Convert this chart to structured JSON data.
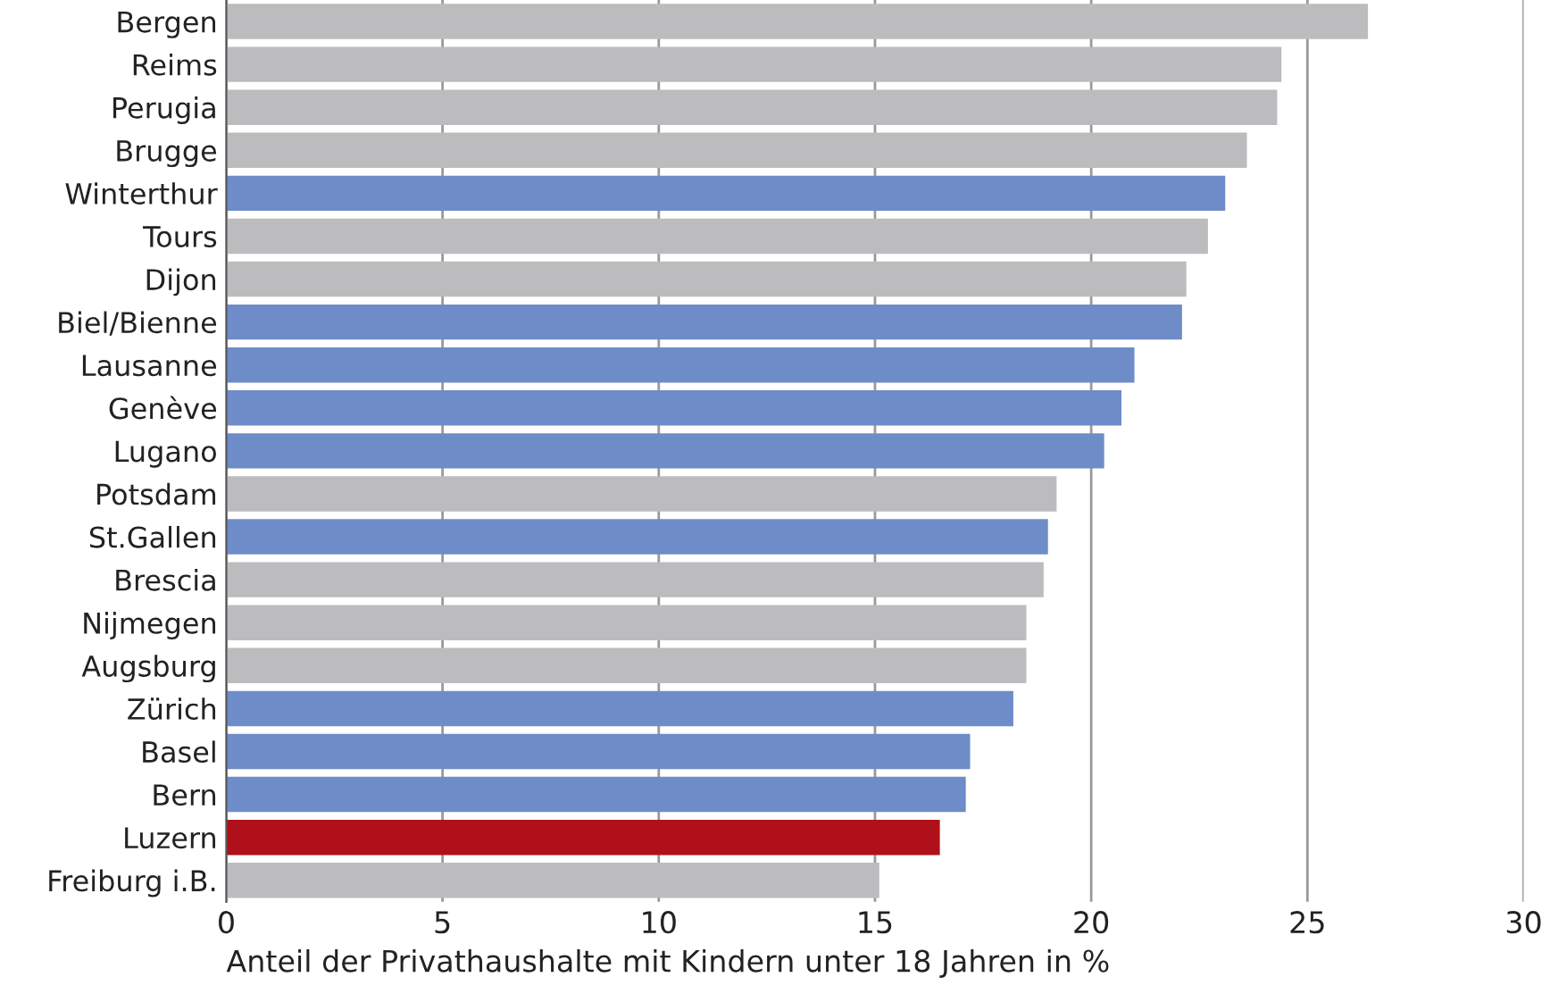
{
  "chart_data": {
    "type": "bar",
    "orientation": "horizontal",
    "xlabel": "Anteil der Privathaushalte mit Kindern unter 18 Jahren in %",
    "categories": [
      "Bergen",
      "Reims",
      "Perugia",
      "Brugge",
      "Winterthur",
      "Tours",
      "Dijon",
      "Biel/Bienne",
      "Lausanne",
      "Genève",
      "Lugano",
      "Potsdam",
      "St.Gallen",
      "Brescia",
      "Nijmegen",
      "Augsburg",
      "Zürich",
      "Basel",
      "Bern",
      "Luzern",
      "Freiburg i.B."
    ],
    "values": [
      26.4,
      24.4,
      24.3,
      23.6,
      23.1,
      22.7,
      22.2,
      22.1,
      21.0,
      20.7,
      20.3,
      19.2,
      19.0,
      18.9,
      18.5,
      18.5,
      18.2,
      17.2,
      17.1,
      16.5,
      15.1
    ],
    "colors": [
      "#bcbcbe",
      "#bcbcbe",
      "#bcbcbe",
      "#bcbcbe",
      "#6e8cc8",
      "#bcbcbe",
      "#bcbcbe",
      "#6e8cc8",
      "#6e8cc8",
      "#6e8cc8",
      "#6e8cc8",
      "#bcbcbe",
      "#6e8cc8",
      "#bcbcbe",
      "#bcbcbe",
      "#bcbcbe",
      "#6e8cc8",
      "#6e8cc8",
      "#6e8cc8",
      "#b0101a",
      "#bcbcbe"
    ],
    "xlim": [
      0,
      30
    ],
    "xticks": [
      0,
      5,
      10,
      15,
      20,
      25,
      30
    ],
    "grid": "x",
    "legend": false
  }
}
